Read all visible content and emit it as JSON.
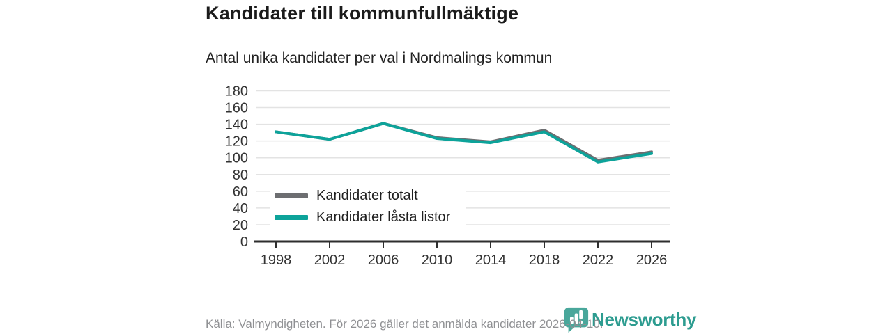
{
  "chart_data": {
    "type": "line",
    "title": "Kandidater till kommunfullmäktige",
    "subtitle": "Antal unika kandidater per val i Nordmalings kommun",
    "categories": [
      "1998",
      "2002",
      "2006",
      "2010",
      "2014",
      "2018",
      "2022",
      "2026"
    ],
    "series": [
      {
        "name": "Kandidater totalt",
        "color": "#6d6e71",
        "values": [
          131,
          122,
          141,
          124,
          119,
          133,
          97,
          107
        ]
      },
      {
        "name": "Kandidater låsta listor",
        "color": "#0da39a",
        "values": [
          131,
          122,
          141,
          123,
          118,
          131,
          95,
          105
        ]
      }
    ],
    "xlabel": "",
    "ylabel": "",
    "ylim": [
      0,
      180
    ],
    "ytick_step": 20,
    "grid": "horizontal-only",
    "legend_position": "inside-bottom-left",
    "grid_color": "#e3e3e3",
    "axis_color": "#2e2e2e",
    "tick_label_color": "#333333"
  },
  "footer": {
    "source": "Källa: Valmyndigheten. För 2026 gäller det anmälda kandidater 2026-04-10.",
    "logo_text": "Newsworthy",
    "logo_colors": {
      "bubble": "#49a79b",
      "wordmark": "#2d9c90"
    }
  }
}
